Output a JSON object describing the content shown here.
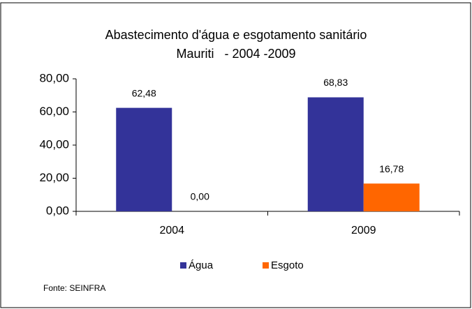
{
  "chart_data": {
    "type": "bar",
    "title": "Abastecimento d'água e esgotamento sanitário",
    "subtitle": "Mauriti   - 2004 -2009",
    "categories": [
      "2004",
      "2009"
    ],
    "series": [
      {
        "name": "Água",
        "color": "#333399",
        "values": [
          62.48,
          68.83
        ],
        "value_labels": [
          "62,48",
          "68,83"
        ]
      },
      {
        "name": "Esgoto",
        "color": "#ff6600",
        "values": [
          0,
          16.78
        ],
        "value_labels": [
          "0,00",
          "16,78"
        ]
      }
    ],
    "ylim": [
      0,
      80
    ],
    "yticks": [
      {
        "value": 0,
        "label": "0,00"
      },
      {
        "value": 20,
        "label": "20,00"
      },
      {
        "value": 40,
        "label": "40,00"
      },
      {
        "value": 60,
        "label": "60,00"
      },
      {
        "value": 80,
        "label": "80,00"
      }
    ],
    "grid": false,
    "legend": "bottom",
    "source": "Fonte: SEINFRA"
  }
}
